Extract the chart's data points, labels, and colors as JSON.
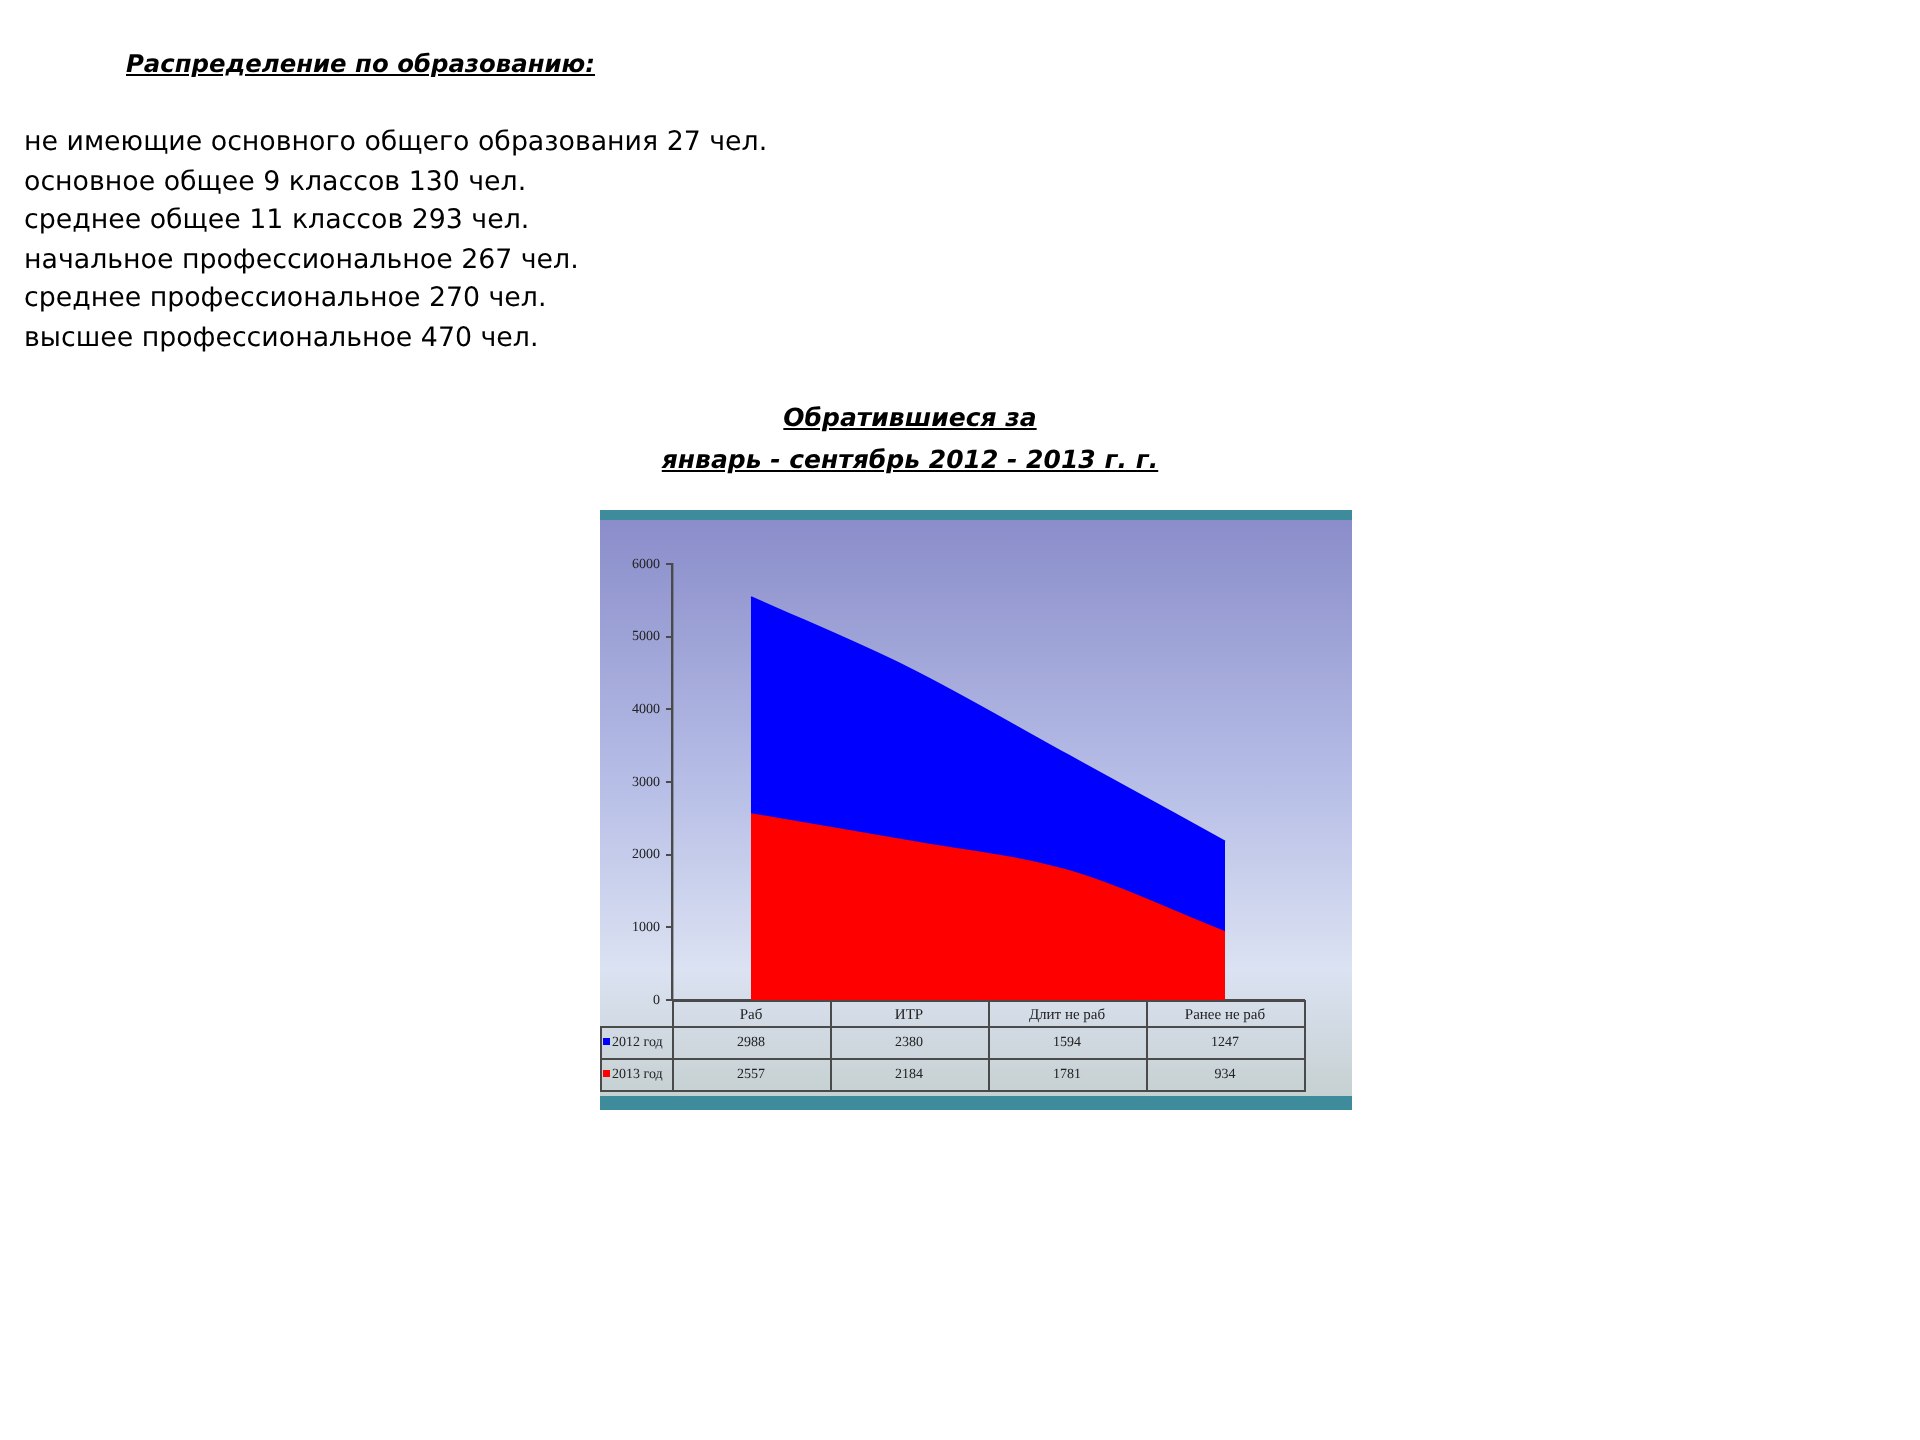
{
  "chart_data": {
    "type": "area",
    "title": "Обратившиеся за\nянварь - сентябрь 2012 - 2013 г. г.",
    "annotations": [
      "Распределение по образованию:",
      "не имеющие основного общего образования 27 чел.",
      "основное общее 9 классов 130 чел.",
      "среднее общее 11 классов 293 чел.",
      "начальное профессиональное 267 чел.",
      "среднее профессиональное 270 чел.",
      "высшее профессиональное 470 чел."
    ],
    "categories": [
      "Раб",
      "ИТР",
      "Длит не раб",
      "Ранее не раб"
    ],
    "series": [
      {
        "name": "2013 год",
        "color": "#ff0000",
        "values": [
          2557,
          2184,
          1781,
          934
        ]
      },
      {
        "name": "2012 год",
        "color": "#0000ff",
        "values": [
          2988,
          2380,
          1594,
          1247
        ]
      }
    ],
    "stacked": true,
    "ylim": [
      0,
      6000
    ],
    "yticks": [
      0,
      1000,
      2000,
      3000,
      4000,
      5000,
      6000
    ],
    "grid": false,
    "legend": "bottom",
    "marker": "none",
    "data_labels": true
  }
}
